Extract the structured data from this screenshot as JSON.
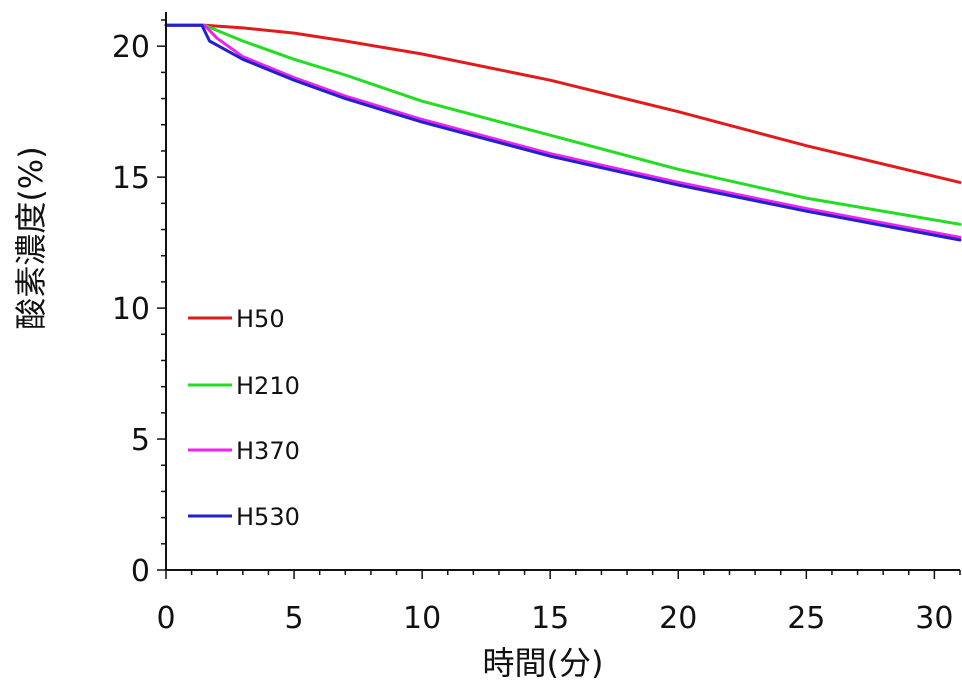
{
  "chart_data": {
    "type": "line",
    "title": "",
    "xlabel": "時間(分)",
    "ylabel": "酸素濃度(%)",
    "xlim": [
      0,
      31
    ],
    "ylim": [
      0,
      21
    ],
    "xticks": [
      0,
      5,
      10,
      15,
      20,
      25,
      30
    ],
    "yticks": [
      0,
      5,
      10,
      15,
      20
    ],
    "xtick_labels": [
      "0",
      "5",
      "10",
      "15",
      "20",
      "25",
      "30"
    ],
    "ytick_labels": [
      "0",
      "5",
      "10",
      "15",
      "20"
    ],
    "grid": false,
    "legend_position": "left",
    "series": [
      {
        "name": "H50",
        "color": "#e31a1c",
        "x": [
          0,
          1.5,
          3,
          5,
          7,
          10,
          15,
          20,
          25,
          31
        ],
        "y": [
          20.8,
          20.8,
          20.7,
          20.5,
          20.2,
          19.7,
          18.7,
          17.5,
          16.2,
          14.8
        ]
      },
      {
        "name": "H210",
        "color": "#22dd22",
        "x": [
          0,
          1.5,
          2,
          3,
          5,
          7,
          10,
          15,
          20,
          25,
          31
        ],
        "y": [
          20.8,
          20.8,
          20.6,
          20.2,
          19.5,
          18.9,
          17.9,
          16.6,
          15.3,
          14.2,
          13.2
        ]
      },
      {
        "name": "H370",
        "color": "#ee22ee",
        "x": [
          0,
          1.5,
          2,
          3,
          5,
          7,
          10,
          15,
          20,
          25,
          31
        ],
        "y": [
          20.8,
          20.8,
          20.3,
          19.6,
          18.8,
          18.1,
          17.2,
          15.9,
          14.8,
          13.8,
          12.7
        ]
      },
      {
        "name": "H530",
        "color": "#2222cc",
        "x": [
          0,
          1.4,
          1.7,
          3,
          5,
          7,
          10,
          15,
          20,
          25,
          31
        ],
        "y": [
          20.8,
          20.8,
          20.2,
          19.5,
          18.7,
          18.0,
          17.1,
          15.8,
          14.7,
          13.7,
          12.6
        ]
      }
    ]
  }
}
